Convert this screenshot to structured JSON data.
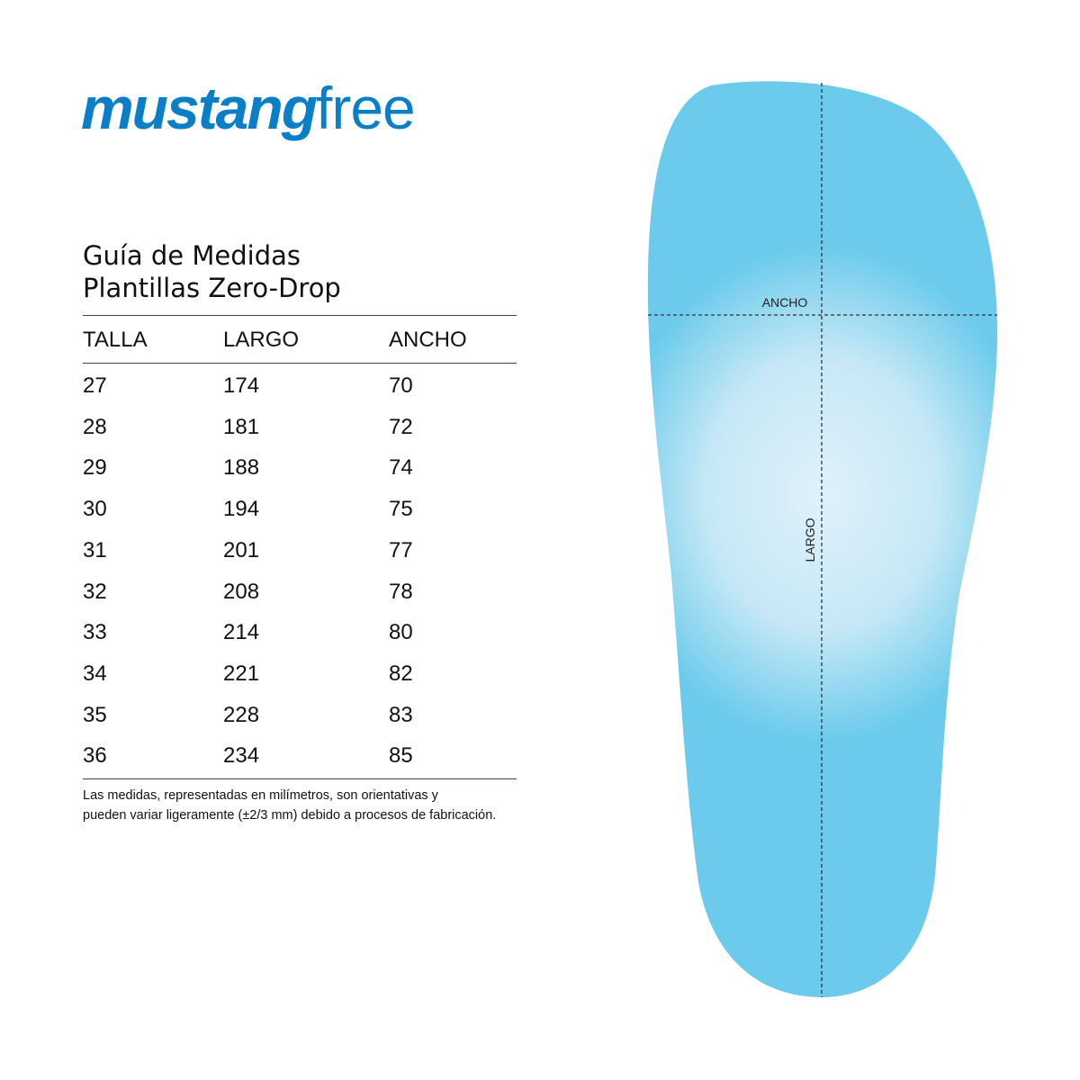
{
  "brand": {
    "logo_bold": "mustang",
    "logo_light": "free",
    "color": "#0a7fc7"
  },
  "title": {
    "line1": "Guía de Medidas",
    "line2": "Plantillas Zero-Drop"
  },
  "table": {
    "headers": [
      "TALLA",
      "LARGO",
      "ANCHO"
    ],
    "rows": [
      [
        "27",
        "174",
        "70"
      ],
      [
        "28",
        "181",
        "72"
      ],
      [
        "29",
        "188",
        "74"
      ],
      [
        "30",
        "194",
        "75"
      ],
      [
        "31",
        "201",
        "77"
      ],
      [
        "32",
        "208",
        "78"
      ],
      [
        "33",
        "214",
        "80"
      ],
      [
        "34",
        "221",
        "82"
      ],
      [
        "35",
        "228",
        "83"
      ],
      [
        "36",
        "234",
        "85"
      ]
    ]
  },
  "note": {
    "line1": "Las medidas, representadas en milímetros, son orientativas y",
    "line2": "pueden variar ligeramente (±2/3 mm) debido a procesos de fabricación."
  },
  "insole": {
    "width_label": "ANCHO",
    "length_label": "LARGO",
    "color": "#6ccbec"
  }
}
